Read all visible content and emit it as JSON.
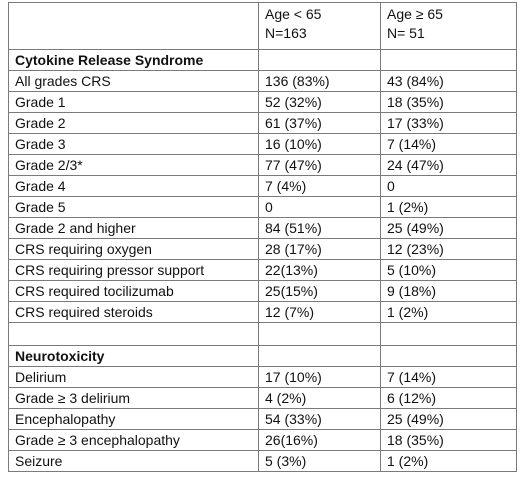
{
  "header": {
    "col1": "",
    "col2_line1": "Age < 65",
    "col2_line2": "N=163",
    "col3_line1": "Age ≥ 65",
    "col3_line2": "N= 51"
  },
  "sections": [
    {
      "title": "Cytokine Release Syndrome",
      "rows": [
        {
          "label": "All grades CRS",
          "a": "136 (83%)",
          "b": "43 (84%)"
        },
        {
          "label": "Grade 1",
          "a": "52 (32%)",
          "b": "18 (35%)"
        },
        {
          "label": "Grade 2",
          "a": "61 (37%)",
          "b": "17 (33%)"
        },
        {
          "label": "Grade 3",
          "a": "16 (10%)",
          "b": "7 (14%)"
        },
        {
          "label": "Grade 2/3*",
          "a": "77 (47%)",
          "b": "24 (47%)"
        },
        {
          "label": "Grade 4",
          "a": "7 (4%)",
          "b": "0"
        },
        {
          "label": "Grade 5",
          "a": "0",
          "b": "1 (2%)"
        },
        {
          "label": "Grade 2 and higher",
          "a": "84 (51%)",
          "b": "25 (49%)"
        },
        {
          "label": "CRS requiring oxygen",
          "a": "28 (17%)",
          "b": "12 (23%)"
        },
        {
          "label": "CRS requiring pressor support",
          "a": "22(13%)",
          "b": "5 (10%)"
        },
        {
          "label": "CRS required tocilizumab",
          "a": "25(15%)",
          "b": "9 (18%)"
        },
        {
          "label": "CRS required steroids",
          "a": "12 (7%)",
          "b": "1 (2%)"
        }
      ]
    },
    {
      "title": "Neurotoxicity",
      "rows": [
        {
          "label": "Delirium",
          "a": "17 (10%)",
          "b": "7 (14%)"
        },
        {
          "label": "Grade ≥ 3 delirium",
          "a": "4 (2%)",
          "b": "6 (12%)"
        },
        {
          "label": "Encephalopathy",
          "a": "54 (33%)",
          "b": "25 (49%)"
        },
        {
          "label": "Grade ≥ 3 encephalopathy",
          "a": "26(16%)",
          "b": "18 (35%)"
        },
        {
          "label": "Seizure",
          "a": "5 (3%)",
          "b": "1 (2%)"
        }
      ]
    }
  ]
}
